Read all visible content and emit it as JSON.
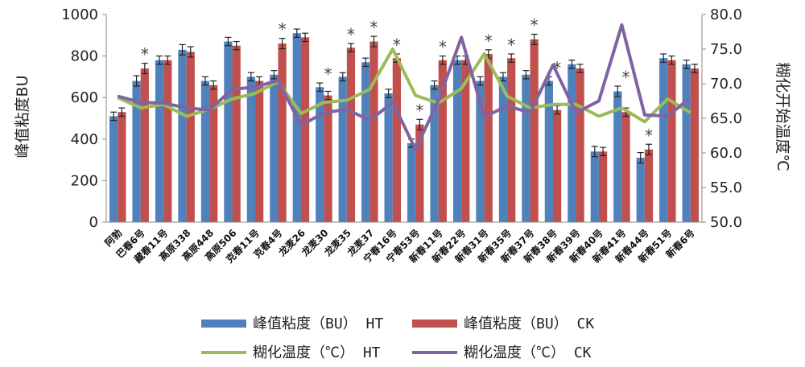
{
  "chart_data": {
    "type": "bar",
    "categories": [
      "阿勃",
      "巴春6号",
      "藏春11号",
      "高原338",
      "高原448",
      "高原506",
      "克春11号",
      "克春4号",
      "龙麦26",
      "龙麦30",
      "龙麦35",
      "龙麦37",
      "宁春16号",
      "宁春53号",
      "新春11号",
      "新春22号",
      "新春31号",
      "新春35号",
      "新春37号",
      "新春38号",
      "新春39号",
      "新春40号",
      "新春41号",
      "新春44号",
      "新春51号",
      "新春6号"
    ],
    "y_left": {
      "label": "峰值粘度BU",
      "ylim": [
        0,
        1000
      ],
      "ticks": [
        "0",
        "200",
        "400",
        "600",
        "800",
        "1000"
      ]
    },
    "y_right": {
      "label": "糊化开始温度℃",
      "ylim": [
        50,
        80
      ],
      "ticks": [
        "50.0",
        "55.0",
        "60.0",
        "65.0",
        "70.0",
        "75.0",
        "80.0"
      ]
    },
    "series": [
      {
        "name": "峰值粘度（BU） HT",
        "kind": "bar",
        "axis": "left",
        "color": "#4f81bd",
        "values": [
          510,
          680,
          780,
          830,
          680,
          870,
          700,
          710,
          910,
          650,
          700,
          770,
          620,
          380,
          660,
          780,
          680,
          700,
          710,
          680,
          760,
          340,
          630,
          310,
          790,
          760
        ],
        "errors": [
          20,
          25,
          20,
          25,
          20,
          20,
          20,
          20,
          20,
          20,
          20,
          20,
          20,
          20,
          20,
          20,
          20,
          20,
          20,
          20,
          20,
          25,
          25,
          25,
          20,
          20
        ]
      },
      {
        "name": "峰值粘度（BU） CK",
        "kind": "bar",
        "axis": "left",
        "color": "#c0504d",
        "values": [
          530,
          740,
          780,
          820,
          660,
          850,
          680,
          860,
          890,
          610,
          840,
          870,
          790,
          470,
          780,
          780,
          810,
          790,
          880,
          540,
          740,
          340,
          530,
          350,
          780,
          740
        ],
        "errors": [
          20,
          25,
          20,
          25,
          20,
          20,
          20,
          25,
          20,
          20,
          20,
          25,
          20,
          25,
          20,
          20,
          20,
          20,
          25,
          20,
          20,
          20,
          20,
          25,
          20,
          20
        ]
      },
      {
        "name": "糊化温度（℃） HT",
        "kind": "line",
        "axis": "right",
        "color": "#9bbb59",
        "values": [
          68.0,
          66.5,
          67.0,
          65.3,
          66.3,
          67.8,
          68.6,
          70.3,
          65.7,
          67.3,
          67.6,
          69.2,
          75.0,
          68.3,
          67.2,
          69.3,
          74.3,
          68.2,
          66.5,
          67.0,
          67.0,
          65.3,
          66.5,
          64.5,
          67.8,
          65.8
        ]
      },
      {
        "name": "糊化温度（℃） CK",
        "kind": "line",
        "axis": "right",
        "color": "#8064a2",
        "values": [
          68.2,
          67.3,
          67.2,
          66.5,
          66.2,
          69.2,
          69.5,
          70.5,
          64.0,
          65.8,
          66.3,
          64.7,
          67.3,
          60.5,
          67.6,
          76.7,
          65.2,
          66.8,
          65.8,
          72.7,
          65.8,
          67.5,
          78.5,
          65.5,
          65.3,
          68.0
        ]
      }
    ],
    "annotations": {
      "symbol": "*",
      "categories": [
        "巴春6号",
        "克春4号",
        "龙麦30",
        "龙麦35",
        "龙麦37",
        "宁春16号",
        "宁春53号",
        "新春11号",
        "新春31号",
        "新春35号",
        "新春37号",
        "新春38号",
        "新春41号",
        "新春44号"
      ]
    },
    "legend_position": "bottom",
    "grid": false
  }
}
